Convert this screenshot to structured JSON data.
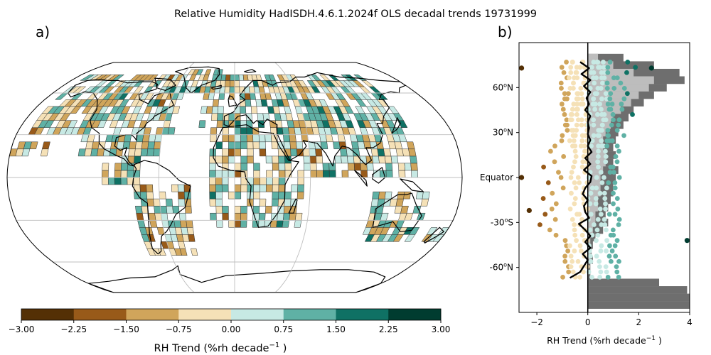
{
  "figure": {
    "title": "Relative Humidity HadISDH.4.6.1.2024f OLS decadal trends 19731999"
  },
  "panels": {
    "a_label": "a)",
    "b_label": "b)"
  },
  "colors": {
    "bins": [
      "#543005",
      "#985a19",
      "#d0a55b",
      "#f5e1b7",
      "#c7e9e4",
      "#5fb1a5",
      "#0f7164",
      "#003c30"
    ],
    "mean_line": "#000000",
    "hist_all": "#6e6e6e",
    "hist_land": "#bdbdbd",
    "land_outline": "#000000",
    "graticule": "#bfbfbf"
  },
  "chart_data": [
    {
      "type": "map",
      "projection": "Robinson",
      "colorbar": {
        "label": "RH Trend (%rh decade",
        "label_sup": "−1",
        "label_suffix": " )",
        "ticks": [
          "-3.00",
          "-2.25",
          "-1.50",
          "-0.75",
          "0.00",
          "0.75",
          "1.50",
          "2.25",
          "3.00"
        ],
        "bounds": [
          -3.0,
          -2.25,
          -1.5,
          -0.75,
          0.0,
          0.75,
          1.5,
          2.25,
          3.0
        ]
      }
    },
    {
      "type": "scatter",
      "xlabel": "RH Trend (%rh decade",
      "xlabel_sup": "−1",
      "xlabel_suffix": " )",
      "xlim": [
        -2.7,
        4.0
      ],
      "ylim": [
        -90,
        90
      ],
      "xticks": [
        -2,
        0,
        2,
        4
      ],
      "xticklabels": [
        "−2",
        "0",
        "2",
        "4"
      ],
      "yticks": [
        60,
        30,
        0,
        -30,
        -60
      ],
      "yticklabels": [
        {
          "v": 60,
          "main": "60",
          "sup": "o",
          "tail": "N"
        },
        {
          "v": 30,
          "main": "30",
          "sup": "o",
          "tail": "N"
        },
        {
          "v": 0,
          "main": "Equator",
          "sup": "",
          "tail": ""
        },
        {
          "v": -30,
          "main": "-30",
          "sup": "o",
          "tail": "S"
        },
        {
          "v": -60,
          "main": "-60",
          "sup": "o",
          "tail": "N"
        }
      ],
      "zonal_mean": {
        "lat": [
          77,
          73,
          69,
          65,
          61,
          57,
          53,
          49,
          45,
          41,
          37,
          33,
          29,
          25,
          21,
          17,
          13,
          9,
          5,
          1,
          -3,
          -7,
          -11,
          -15,
          -19,
          -23,
          -27,
          -31,
          -35,
          -39,
          -43,
          -47,
          -51,
          -55,
          -59,
          -63,
          -67
        ],
        "value": [
          -0.3,
          0.05,
          -0.25,
          0.1,
          -0.15,
          0.1,
          -0.05,
          0.05,
          -0.1,
          0.1,
          0.0,
          0.05,
          0.0,
          0.1,
          0.0,
          0.15,
          -0.1,
          0.1,
          -0.15,
          0.15,
          0.1,
          -0.1,
          -0.2,
          0.0,
          -0.15,
          -0.1,
          0.05,
          -0.35,
          -0.1,
          0.1,
          -0.1,
          0.1,
          -0.2,
          0.0,
          -0.15,
          -0.3,
          -0.7
        ]
      },
      "hist_all": {
        "lat": [
          80,
          75,
          70,
          65,
          60,
          55,
          50,
          45,
          40,
          35,
          30,
          25,
          20,
          15,
          10,
          5,
          0,
          -5,
          -10,
          -15,
          -20,
          -25,
          -30,
          -35,
          -40,
          -45,
          -50,
          -55,
          -60,
          -65,
          -70,
          -75,
          -80,
          -85
        ],
        "value": [
          1.4,
          2.6,
          3.6,
          3.8,
          3.1,
          2.6,
          2.2,
          1.8,
          1.6,
          1.4,
          1.2,
          1.1,
          1.0,
          1.1,
          1.0,
          1.2,
          1.1,
          1.0,
          1.0,
          0.9,
          0.8,
          0.7,
          0.8,
          0.6,
          0.3,
          0.2,
          0.15,
          0.2,
          0.1,
          0.1,
          2.8,
          3.9,
          4.0,
          4.0
        ]
      },
      "hist_land": {
        "lat": [
          80,
          75,
          70,
          65,
          60,
          55,
          50,
          45,
          40,
          35,
          30,
          25,
          20,
          15,
          10,
          5,
          0,
          -5,
          -10,
          -15,
          -20,
          -25,
          -30,
          -35,
          -40,
          -45,
          -50,
          -55,
          -60,
          -65,
          -70,
          -75,
          -80,
          -85
        ],
        "value": [
          0.4,
          1.0,
          1.8,
          2.6,
          2.4,
          2.0,
          1.7,
          1.3,
          1.0,
          0.9,
          0.7,
          0.6,
          0.6,
          0.7,
          0.7,
          0.6,
          0.5,
          0.5,
          0.5,
          0.4,
          0.4,
          0.3,
          0.3,
          0.2,
          0.1,
          0.1,
          0.1,
          0.1,
          0.0,
          0.0,
          0.0,
          0.0,
          0.0,
          0.0
        ]
      }
    }
  ]
}
